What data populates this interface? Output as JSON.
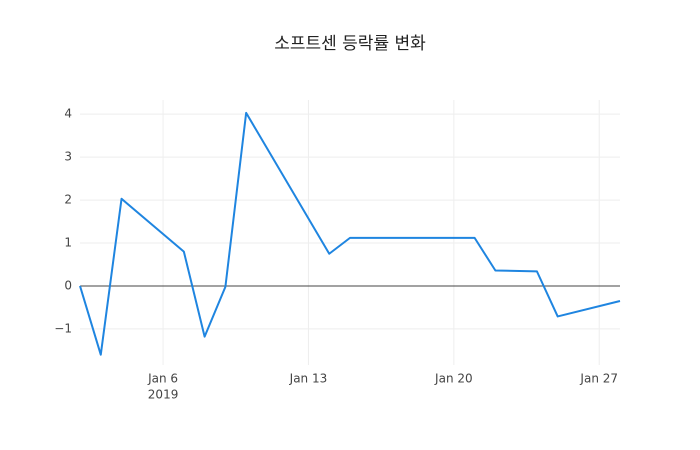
{
  "chart_data": {
    "type": "line",
    "title": "소프트센 등락률 변화",
    "x": [
      "2019-01-02",
      "2019-01-03",
      "2019-01-04",
      "2019-01-07",
      "2019-01-08",
      "2019-01-09",
      "2019-01-10",
      "2019-01-14",
      "2019-01-15",
      "2019-01-21",
      "2019-01-22",
      "2019-01-24",
      "2019-01-25",
      "2019-01-28"
    ],
    "series": [
      {
        "name": "등락률",
        "color": "#1f85e0",
        "values": [
          0,
          -1.6,
          2.03,
          0.8,
          -1.18,
          -0.02,
          4.03,
          0.75,
          1.12,
          1.12,
          0.36,
          0.34,
          -0.71,
          -0.35
        ]
      }
    ],
    "xlim": [
      "2019-01-02",
      "2019-01-28"
    ],
    "xticks": [
      {
        "value": "2019-01-06",
        "label": [
          "Jan 6",
          "2019"
        ]
      },
      {
        "value": "2019-01-13",
        "label": [
          "Jan 13"
        ]
      },
      {
        "value": "2019-01-20",
        "label": [
          "Jan 20"
        ]
      },
      {
        "value": "2019-01-27",
        "label": [
          "Jan 27"
        ]
      }
    ],
    "ylim": [
      -1.84,
      4.33
    ],
    "yticks": [
      {
        "value": -1,
        "label": "−1"
      },
      0,
      1,
      2,
      3,
      4
    ],
    "grid": true,
    "zero_line": true
  }
}
